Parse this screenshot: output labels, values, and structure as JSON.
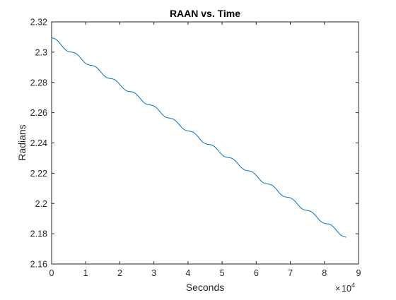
{
  "chart_data": {
    "type": "line",
    "title": "RAAN vs. Time",
    "xlabel": "Seconds",
    "ylabel": "Radians",
    "xlim": [
      0,
      90000
    ],
    "ylim": [
      2.16,
      2.32
    ],
    "x_ticks": [
      0,
      10000,
      20000,
      30000,
      40000,
      50000,
      60000,
      70000,
      80000,
      90000
    ],
    "x_tick_labels": [
      "0",
      "1",
      "2",
      "3",
      "4",
      "5",
      "6",
      "7",
      "8",
      "9"
    ],
    "x_exponent": {
      "base": "10",
      "power": "4"
    },
    "y_ticks": [
      2.16,
      2.18,
      2.2,
      2.22,
      2.24,
      2.26,
      2.28,
      2.3,
      2.32
    ],
    "y_tick_labels": [
      "2.16",
      "2.18",
      "2.2",
      "2.22",
      "2.24",
      "2.26",
      "2.28",
      "2.3",
      "2.32"
    ],
    "grid": false,
    "line_color": "#0072bd",
    "series": [
      {
        "x": [
          0,
          4000,
          8000,
          12000,
          16000,
          20000,
          24000,
          28000,
          32000,
          36000,
          40000,
          44000,
          48000,
          52000,
          56000,
          60000,
          64000,
          68000,
          72000,
          76000,
          80000,
          84000,
          86400
        ],
        "y": [
          2.3095,
          2.3027,
          2.2967,
          2.2906,
          2.2845,
          2.2784,
          2.2725,
          2.2663,
          2.2604,
          2.2542,
          2.2483,
          2.2421,
          2.2362,
          2.2301,
          2.2241,
          2.218,
          2.2119,
          2.2058,
          2.1998,
          2.1937,
          2.1876,
          2.1815,
          2.1777
        ],
        "oscillation": {
          "period": 5760,
          "amplitude": 0.0011
        }
      }
    ]
  }
}
